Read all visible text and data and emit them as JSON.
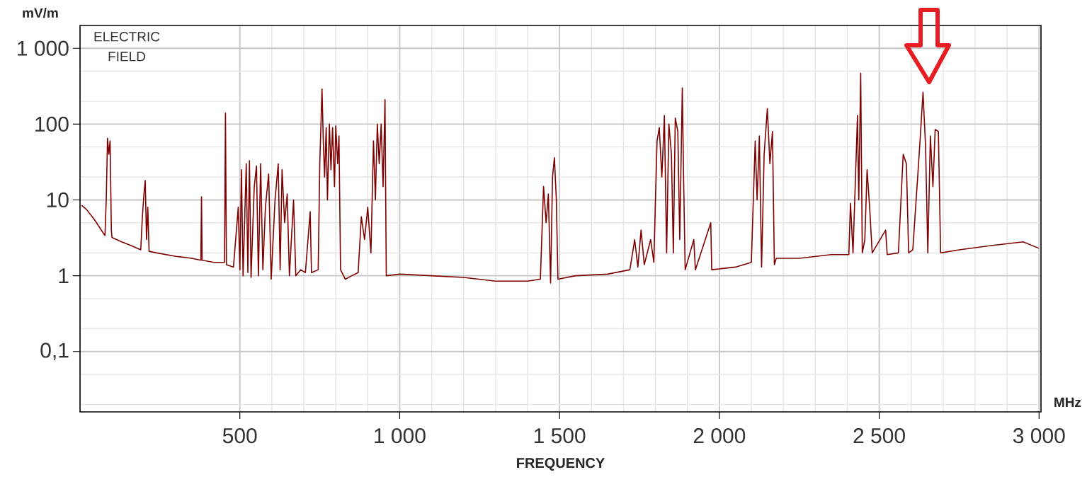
{
  "chart_data": {
    "type": "line",
    "xlabel": "FREQUENCY",
    "ylabel": "mV/m",
    "log": "y",
    "grid": true,
    "annotations": [
      "ELECTRIC FIELD",
      "MHz"
    ],
    "xlim": [
      0,
      3006
    ],
    "ylim": [
      0.016,
      2000
    ],
    "xticks": [
      500,
      {
        "value": 1000,
        "label": "1 000"
      },
      {
        "value": 1500,
        "label": "1 500"
      },
      {
        "value": 2000,
        "label": "2 000"
      },
      {
        "value": 2500,
        "label": "2 500"
      },
      {
        "value": 3000,
        "label": "3 000"
      }
    ],
    "yticks": [
      {
        "value": 0.1,
        "label": "0,1"
      },
      1,
      10,
      100,
      {
        "value": 1000,
        "label": "1 000"
      }
    ],
    "series": [
      {
        "color": "#7f0000",
        "x": [
          5,
          20,
          45,
          70,
          78,
          82,
          86,
          90,
          94,
          98,
          100,
          130,
          160,
          190,
          195,
          200,
          204,
          208,
          212,
          216,
          240,
          300,
          350,
          378,
          380,
          382,
          420,
          452,
          455,
          458,
          480,
          495,
          500,
          505,
          510,
          520,
          525,
          530,
          535,
          545,
          552,
          558,
          565,
          572,
          580,
          590,
          598,
          610,
          620,
          626,
          632,
          640,
          648,
          655,
          668,
          675,
          690,
          705,
          720,
          724,
          745,
          750,
          757,
          761,
          765,
          770,
          774,
          780,
          785,
          790,
          796,
          800,
          806,
          810,
          815,
          830,
          850,
          870,
          880,
          890,
          900,
          910,
          918,
          924,
          930,
          936,
          942,
          948,
          954,
          958,
          1000,
          1100,
          1200,
          1300,
          1400,
          1440,
          1450,
          1458,
          1465,
          1472,
          1478,
          1484,
          1490,
          1495,
          1550,
          1650,
          1720,
          1735,
          1745,
          1755,
          1765,
          1785,
          1795,
          1800,
          1805,
          1812,
          1820,
          1828,
          1835,
          1842,
          1850,
          1856,
          1862,
          1870,
          1876,
          1884,
          1888,
          1893,
          1920,
          1925,
          1973,
          1976,
          2050,
          2100,
          2112,
          2118,
          2125,
          2132,
          2140,
          2150,
          2158,
          2166,
          2172,
          2178,
          2250,
          2350,
          2405,
          2410,
          2418,
          2432,
          2436,
          2442,
          2447,
          2455,
          2462,
          2470,
          2478,
          2520,
          2525,
          2560,
          2575,
          2585,
          2592,
          2605,
          2625,
          2637,
          2645,
          2652,
          2660,
          2668,
          2675,
          2685,
          2692,
          2750,
          2850,
          2950,
          3000
        ],
        "values": [
          8.5,
          7.5,
          5.5,
          3.8,
          3.4,
          10,
          65,
          40,
          60,
          4,
          3.2,
          2.8,
          2.5,
          2.2,
          6,
          12,
          18,
          3,
          8,
          2.1,
          2.0,
          1.8,
          1.7,
          1.6,
          11,
          1.6,
          1.5,
          1.5,
          140,
          1.4,
          1.3,
          8,
          1.2,
          25,
          1.0,
          30,
          1.1,
          33,
          0.95,
          15,
          28,
          1.0,
          30,
          1.2,
          8,
          22,
          0.9,
          10,
          30,
          1.2,
          25,
          5,
          12,
          1.0,
          10,
          1.0,
          1.2,
          1.1,
          7,
          1.1,
          1.2,
          30,
          290,
          60,
          20,
          90,
          10,
          100,
          25,
          90,
          15,
          95,
          30,
          70,
          1.2,
          0.9,
          1.0,
          1.1,
          6,
          3,
          8,
          2,
          60,
          10,
          100,
          30,
          100,
          15,
          210,
          1.0,
          1.05,
          1.0,
          0.95,
          0.85,
          0.85,
          0.9,
          15,
          5,
          12,
          0.8,
          20,
          36,
          10,
          0.9,
          1.0,
          1.05,
          1.2,
          3,
          1.3,
          4,
          1.4,
          3,
          1.5,
          10,
          60,
          90,
          20,
          130,
          2,
          100,
          40,
          2,
          120,
          80,
          3,
          300,
          20,
          1.2,
          3,
          1.2,
          5,
          1.2,
          1.3,
          1.5,
          60,
          10,
          70,
          1.3,
          40,
          160,
          30,
          80,
          1.4,
          1.7,
          1.7,
          1.9,
          1.9,
          9,
          2,
          130,
          10,
          470,
          2,
          3,
          25,
          8,
          2.0,
          4,
          1.9,
          2.0,
          40,
          30,
          2.0,
          2.2,
          40,
          263,
          50,
          2,
          70,
          15,
          85,
          80,
          2.0,
          2.2,
          2.5,
          2.8,
          2.3
        ]
      }
    ]
  }
}
